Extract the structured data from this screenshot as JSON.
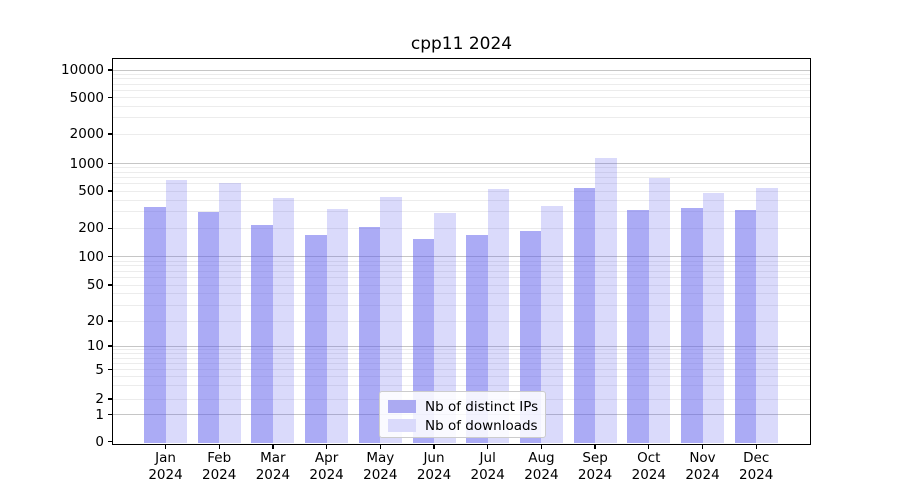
{
  "title": "cpp11 2024",
  "colors": {
    "bar_ips_fill": "rgba(88,88,235,0.50)",
    "bar_downloads_fill": "rgba(88,88,235,0.22)",
    "swatch_ips": "#abaaf2",
    "swatch_downloads": "#dadafb",
    "grid_major": "#c6c6c6",
    "grid_minor": "#ececec",
    "axis": "#000000"
  },
  "legend": {
    "items": [
      {
        "label": "Nb of distinct IPs",
        "series": "ips"
      },
      {
        "label": "Nb of downloads",
        "series": "downloads"
      }
    ]
  },
  "y_axis": {
    "tick_labels": [
      "0",
      "1",
      "2",
      "5",
      "10",
      "20",
      "50",
      "100",
      "200",
      "500",
      "1000",
      "2000",
      "5000",
      "10000"
    ],
    "tick_values": [
      0,
      1,
      2,
      5,
      10,
      20,
      50,
      100,
      200,
      500,
      1000,
      2000,
      5000,
      10000
    ]
  },
  "x_axis": {
    "months": [
      "Jan",
      "Feb",
      "Mar",
      "Apr",
      "May",
      "Jun",
      "Jul",
      "Aug",
      "Sep",
      "Oct",
      "Nov",
      "Dec"
    ],
    "year": "2024"
  },
  "chart_data": {
    "type": "bar",
    "title": "cpp11 2024",
    "categories": [
      "Jan 2024",
      "Feb 2024",
      "Mar 2024",
      "Apr 2024",
      "May 2024",
      "Jun 2024",
      "Jul 2024",
      "Aug 2024",
      "Sep 2024",
      "Oct 2024",
      "Nov 2024",
      "Dec 2024"
    ],
    "series": [
      {
        "name": "Nb of distinct IPs",
        "values": [
          340,
          295,
          215,
          171,
          204,
          153,
          170,
          186,
          545,
          317,
          333,
          312
        ]
      },
      {
        "name": "Nb of downloads",
        "values": [
          655,
          615,
          420,
          318,
          430,
          290,
          520,
          345,
          1150,
          690,
          480,
          535
        ]
      }
    ],
    "yscale": "symlog",
    "y_ticks": [
      0,
      1,
      2,
      5,
      10,
      20,
      50,
      100,
      200,
      500,
      1000,
      2000,
      5000,
      10000
    ],
    "ylim": [
      0,
      13000
    ],
    "grid": true,
    "legend_position": "lower center"
  }
}
